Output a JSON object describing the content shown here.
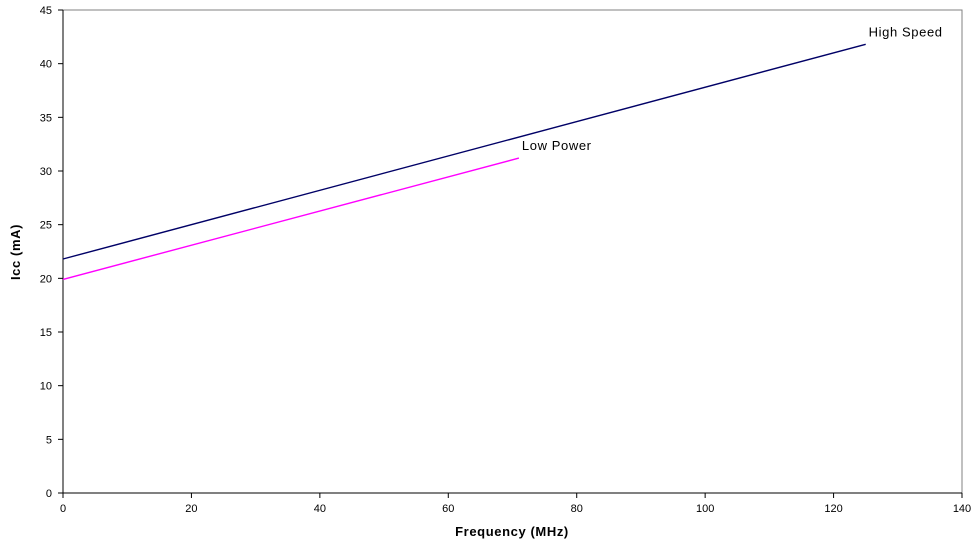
{
  "chart_data": {
    "type": "line",
    "title": "",
    "xlabel": "Frequency (MHz)",
    "ylabel": "Icc (mA)",
    "xlim": [
      0,
      140
    ],
    "ylim": [
      0,
      45
    ],
    "x_ticks": [
      0,
      20,
      40,
      60,
      80,
      100,
      120,
      140
    ],
    "y_ticks": [
      0,
      5,
      10,
      15,
      20,
      25,
      30,
      35,
      40,
      45
    ],
    "grid": false,
    "legend": "none",
    "series": [
      {
        "name": "High Speed",
        "color": "#000066",
        "x": [
          0,
          125
        ],
        "y": [
          21.8,
          41.8
        ]
      },
      {
        "name": "Low Power",
        "color": "#ff00ff",
        "x": [
          0,
          71
        ],
        "y": [
          19.9,
          31.2
        ]
      }
    ]
  }
}
